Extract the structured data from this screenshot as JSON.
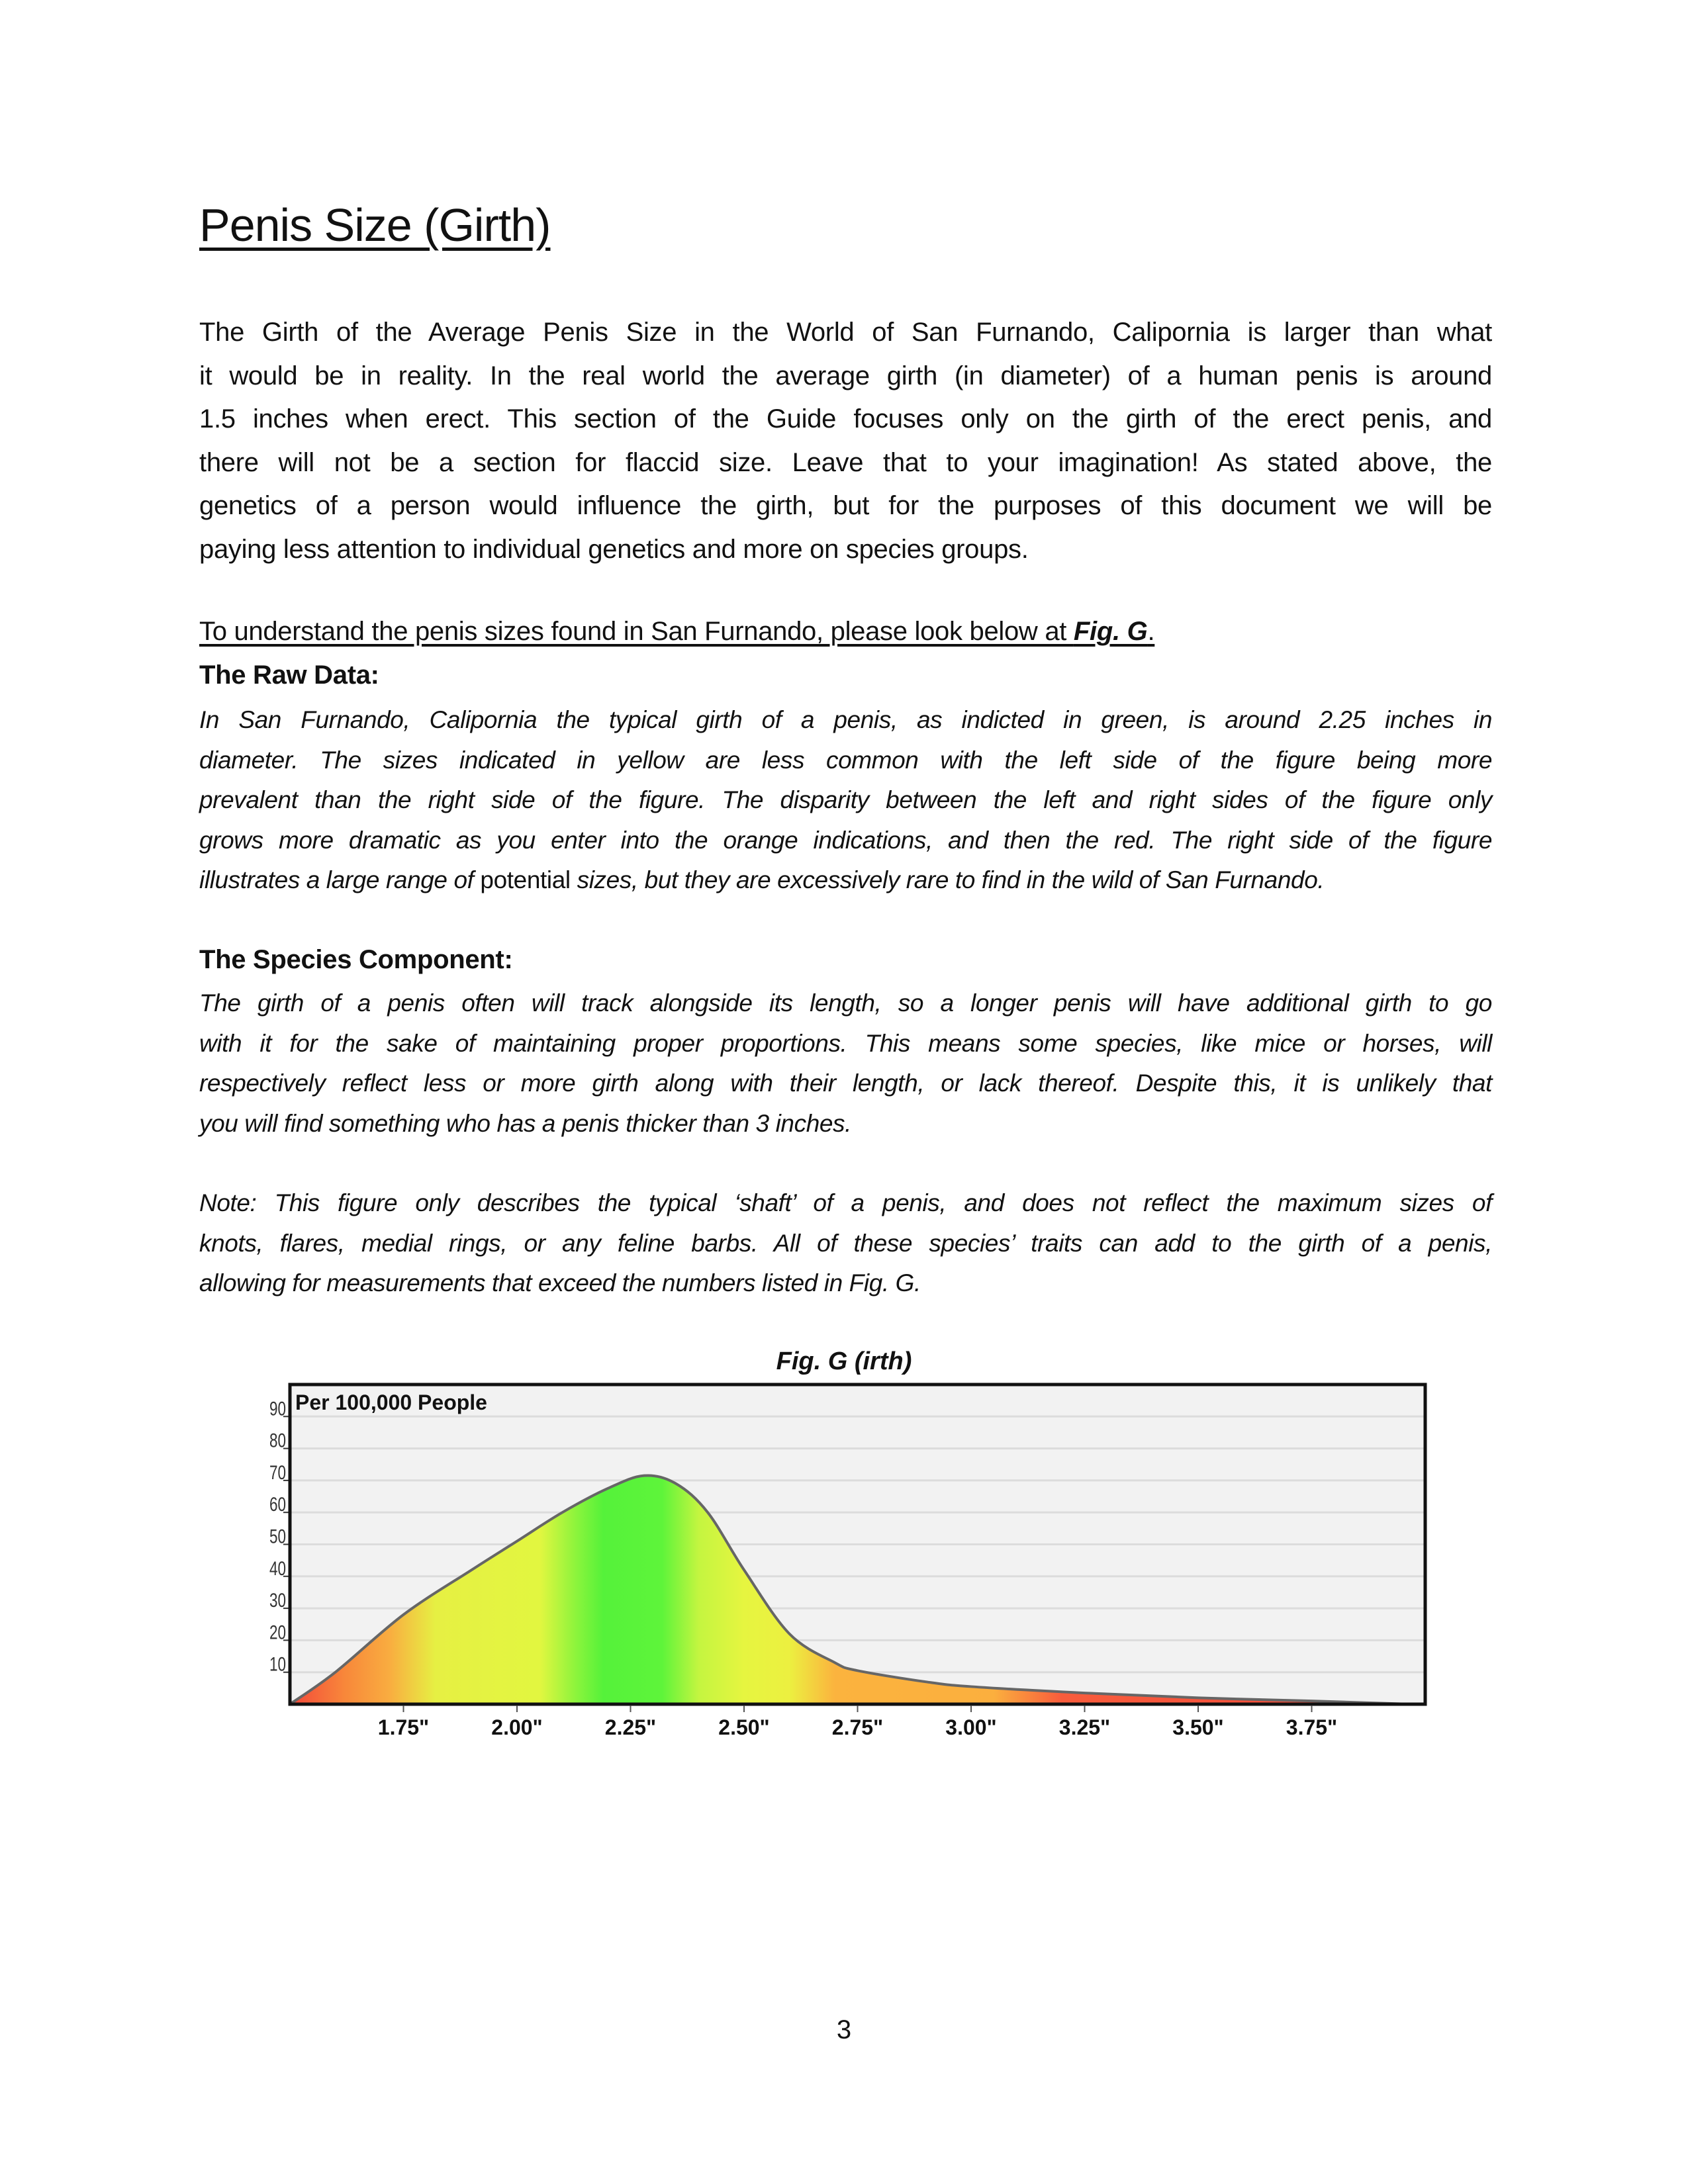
{
  "title": "Penis Size (Girth)",
  "intro_lines": [
    "The Girth of the Average Penis Size in the World of San Furnando, Calipornia is larger than what",
    "it would be in reality. In the real world the average girth (in diameter) of a human penis is around",
    "1.5 inches when erect. This section of the Guide focuses only on the girth of the erect penis, and",
    "there will not be a section for flaccid size. Leave that to your imagination! As stated above, the",
    "genetics of a person would influence the girth, but for the purposes of this document we will be",
    "paying less attention to individual genetics and more on species groups."
  ],
  "understand": {
    "text": "To understand the penis sizes found in San Furnando, please look below at ",
    "ref": "Fig. G",
    "end": "."
  },
  "raw_data": {
    "heading": "The Raw Data:",
    "lines": [
      "In San Furnando, Calipornia the typical girth of a penis, as indicted in green, is around 2.25 inches in",
      "diameter. The sizes indicated in yellow are less common with the left side of the figure being more",
      "prevalent than the right side of the figure. The disparity between the left and right sides of the figure only",
      "grows more dramatic as you enter into the orange indications, and then the red. The right side of the figure"
    ],
    "last_line_a": "illustrates a large range of ",
    "last_line_b": "potential",
    "last_line_c": " sizes, but they are excessively rare to find in the wild of San Furnando."
  },
  "species": {
    "heading": "The Species Component:",
    "lines": [
      "The girth of a penis often will track alongside its length, so a longer penis will have additional girth to go",
      "with it for the sake of maintaining proper proportions. This means some species, like mice or horses, will",
      "respectively reflect less or more girth along with their length, or lack thereof. Despite this, it is unlikely that",
      "you will find something who has a penis thicker than 3 inches."
    ]
  },
  "note": {
    "lines": [
      "Note: This figure only describes the typical ‘shaft’ of a penis, and does not reflect the maximum sizes of",
      "knots, flares, medial rings, or any feline barbs. All of these species’ traits can add to the girth of a penis,",
      "allowing for measurements that exceed the numbers listed in Fig. G."
    ]
  },
  "chart_data": {
    "type": "area",
    "title": "Fig. G (irth)",
    "ylabel": "Per 100,000 People",
    "xlabel": "",
    "xlim": [
      1.5,
      4.0
    ],
    "ylim": [
      0,
      100
    ],
    "x_ticks": [
      1.75,
      2.0,
      2.25,
      2.5,
      2.75,
      3.0,
      3.25,
      3.5,
      3.75
    ],
    "x_tick_labels": [
      "1.75\"",
      "2.00\"",
      "2.25\"",
      "2.50\"",
      "2.75\"",
      "3.00\"",
      "3.25\"",
      "3.50\"",
      "3.75\""
    ],
    "y_ticks": [
      10,
      20,
      30,
      40,
      50,
      60,
      70,
      80,
      90
    ],
    "y_tick_labels": [
      "10",
      "20",
      "30",
      "40",
      "50",
      "60",
      "70",
      "80",
      "90"
    ],
    "grid": true,
    "x": [
      1.5,
      1.6,
      1.75,
      1.9,
      2.0,
      2.1,
      2.2,
      2.28,
      2.35,
      2.42,
      2.5,
      2.6,
      2.7,
      2.75,
      2.9,
      3.0,
      3.25,
      3.5,
      3.75,
      3.97
    ],
    "y": [
      0,
      10,
      28,
      42,
      51,
      60,
      67.5,
      71.5,
      69,
      60,
      42,
      22,
      13,
      10.5,
      7,
      5.5,
      3.5,
      2,
      1,
      0
    ],
    "color_bands": [
      {
        "x": 1.5,
        "color": "#f3473a"
      },
      {
        "x": 1.62,
        "color": "#f8873a"
      },
      {
        "x": 1.72,
        "color": "#f9ad40"
      },
      {
        "x": 1.82,
        "color": "#e6f043"
      },
      {
        "x": 2.05,
        "color": "#e2f640"
      },
      {
        "x": 2.13,
        "color": "#8cf43c"
      },
      {
        "x": 2.19,
        "color": "#55f23a"
      },
      {
        "x": 2.32,
        "color": "#5ef43a"
      },
      {
        "x": 2.4,
        "color": "#c4f540"
      },
      {
        "x": 2.5,
        "color": "#e6f540"
      },
      {
        "x": 2.6,
        "color": "#ecf040"
      },
      {
        "x": 2.7,
        "color": "#fbb33e"
      },
      {
        "x": 3.05,
        "color": "#fbaf3e"
      },
      {
        "x": 3.2,
        "color": "#f85c3c"
      },
      {
        "x": 3.7,
        "color": "#f4503c"
      },
      {
        "x": 3.97,
        "color": "#553535"
      }
    ],
    "plot_background": "#f2f2f2",
    "outline_color": "#666666"
  },
  "page_number": "3"
}
